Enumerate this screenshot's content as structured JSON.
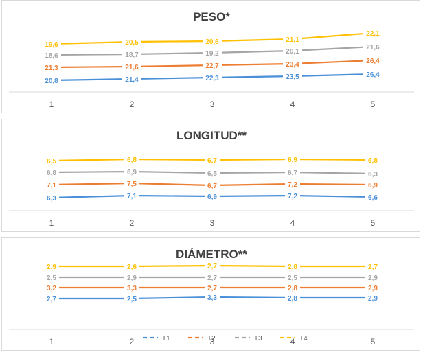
{
  "chart_data": [
    {
      "type": "line",
      "title": "PESO*",
      "categories": [
        "1",
        "2",
        "3",
        "4",
        "5"
      ],
      "series": [
        {
          "name": "T1",
          "color": "#4a90d9",
          "values": [
            20.8,
            21.4,
            22.3,
            23.5,
            26.4
          ],
          "labels": [
            "20,8",
            "21,4",
            "22,3",
            "23,5",
            "26,4"
          ]
        },
        {
          "name": "T2",
          "color": "#ed7d31",
          "values": [
            21.3,
            21.6,
            22.7,
            23.4,
            26.4
          ],
          "labels": [
            "21,3",
            "21,6",
            "22,7",
            "23,4",
            "26,4"
          ]
        },
        {
          "name": "T3",
          "color": "#a5a5a5",
          "values": [
            18.6,
            18.7,
            19.2,
            20.1,
            21.6
          ],
          "labels": [
            "18,6",
            "18,7",
            "19,2",
            "20,1",
            "21,6"
          ]
        },
        {
          "name": "T4",
          "color": "#ffc000",
          "values": [
            19.6,
            20.5,
            20.6,
            21.1,
            22.1
          ],
          "labels": [
            "19,6",
            "20,5",
            "20,6",
            "21,1",
            "22,1"
          ]
        }
      ],
      "plot_y": {
        "T1": [
          116,
          114,
          112,
          110,
          107
        ],
        "T2": [
          97,
          96,
          94,
          92,
          87
        ],
        "T3": [
          79,
          78,
          76,
          73,
          67
        ],
        "T4": [
          63,
          60,
          59,
          56,
          47
        ]
      }
    },
    {
      "type": "line",
      "title": "LONGITUD**",
      "categories": [
        "1",
        "2",
        "3",
        "4",
        "5"
      ],
      "series": [
        {
          "name": "T1",
          "color": "#4a90d9",
          "values": [
            6.3,
            7.1,
            6.9,
            7.2,
            6.6
          ],
          "labels": [
            "6,3",
            "7,1",
            "6,9",
            "7,2",
            "6,6"
          ]
        },
        {
          "name": "T2",
          "color": "#ed7d31",
          "values": [
            7.1,
            7.5,
            6.7,
            7.2,
            6.9
          ],
          "labels": [
            "7,1",
            "7,5",
            "6,7",
            "7,2",
            "6,9"
          ]
        },
        {
          "name": "T3",
          "color": "#a5a5a5",
          "values": [
            6.8,
            6.9,
            6.5,
            6.7,
            6.3
          ],
          "labels": [
            "6,8",
            "6,9",
            "6,5",
            "6,7",
            "6,3"
          ]
        },
        {
          "name": "T4",
          "color": "#ffc000",
          "values": [
            6.5,
            6.8,
            6.7,
            6.9,
            6.8
          ],
          "labels": [
            "6,5",
            "6,8",
            "6,7",
            "6,9",
            "6,8"
          ]
        }
      ],
      "plot_y": {
        "T1": [
          114,
          111,
          112,
          111,
          113
        ],
        "T2": [
          95,
          93,
          96,
          94,
          95
        ],
        "T3": [
          77,
          76,
          78,
          77,
          79
        ],
        "T4": [
          60,
          58,
          59,
          58,
          59
        ]
      }
    },
    {
      "type": "line",
      "title": "DIÁMETRO**",
      "categories": [
        "1",
        "2",
        "3",
        "4",
        "5"
      ],
      "series": [
        {
          "name": "T1",
          "color": "#4a90d9",
          "values": [
            2.7,
            2.5,
            3.3,
            2.8,
            2.9
          ],
          "labels": [
            "2,7",
            "2,5",
            "3,3",
            "2,8",
            "2,9"
          ]
        },
        {
          "name": "T2",
          "color": "#ed7d31",
          "values": [
            3.2,
            3.3,
            2.7,
            2.8,
            2.9
          ],
          "labels": [
            "3,2",
            "3,3",
            "2,7",
            "2,8",
            "2,9"
          ]
        },
        {
          "name": "T3",
          "color": "#a5a5a5",
          "values": [
            2.5,
            2.9,
            2.7,
            2.5,
            2.9
          ],
          "labels": [
            "2,5",
            "2,9",
            "2,7",
            "2,5",
            "2,9"
          ]
        },
        {
          "name": "T4",
          "color": "#ffc000",
          "values": [
            2.9,
            2.6,
            2.7,
            2.8,
            2.7
          ],
          "labels": [
            "2,9",
            "2,6",
            "2,7",
            "2,8",
            "2,7"
          ]
        }
      ],
      "plot_y": {
        "T1": [
          88,
          88,
          86,
          87,
          87
        ],
        "T2": [
          72,
          72,
          72,
          72,
          72
        ],
        "T3": [
          57,
          57,
          57,
          57,
          57
        ],
        "T4": [
          41,
          41,
          40,
          41,
          41
        ]
      }
    }
  ],
  "legend": [
    "T1",
    "T2",
    "T3",
    "T4"
  ]
}
